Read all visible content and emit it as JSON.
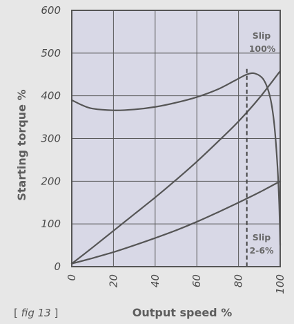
{
  "chart_data": {
    "type": "line",
    "xlabel": "Output speed %",
    "ylabel": "Starting torque %",
    "xlim": [
      0,
      100
    ],
    "ylim": [
      0,
      600
    ],
    "xticks": [
      "0",
      "20",
      "40",
      "60",
      "80",
      "100"
    ],
    "yticks": [
      "0",
      "100",
      "200",
      "300",
      "400",
      "500",
      "600"
    ],
    "grid": true,
    "plot_background": "#d8d8e6",
    "series_color": "#555555",
    "dashed_marker_x": 84,
    "series": [
      {
        "values": [
          [
            0,
            390
          ],
          [
            5,
            378
          ],
          [
            10,
            370
          ],
          [
            20,
            366
          ],
          [
            30,
            368
          ],
          [
            40,
            374
          ],
          [
            50,
            384
          ],
          [
            60,
            397
          ],
          [
            70,
            415
          ],
          [
            78,
            435
          ],
          [
            84,
            450
          ],
          [
            88,
            452
          ],
          [
            92,
            438
          ],
          [
            95,
            400
          ],
          [
            97,
            340
          ],
          [
            98.5,
            250
          ],
          [
            99.5,
            150
          ],
          [
            100,
            50
          ]
        ]
      },
      {
        "values": [
          [
            0,
            7
          ],
          [
            10,
            45
          ],
          [
            20,
            84
          ],
          [
            30,
            123
          ],
          [
            40,
            162
          ],
          [
            50,
            203
          ],
          [
            60,
            246
          ],
          [
            70,
            292
          ],
          [
            80,
            340
          ],
          [
            90,
            395
          ],
          [
            100,
            458
          ]
        ]
      },
      {
        "values": [
          [
            0,
            7
          ],
          [
            10,
            20
          ],
          [
            20,
            34
          ],
          [
            30,
            50
          ],
          [
            40,
            67
          ],
          [
            50,
            85
          ],
          [
            60,
            105
          ],
          [
            70,
            127
          ],
          [
            80,
            150
          ],
          [
            90,
            174
          ],
          [
            100,
            200
          ]
        ]
      }
    ],
    "annotations": {
      "slip_high": [
        "Slip",
        "100%"
      ],
      "slip_low": [
        "Slip",
        "2-6%"
      ]
    }
  },
  "figure_label": {
    "open": "[ ",
    "text": "fig 13",
    "close": " ]"
  }
}
